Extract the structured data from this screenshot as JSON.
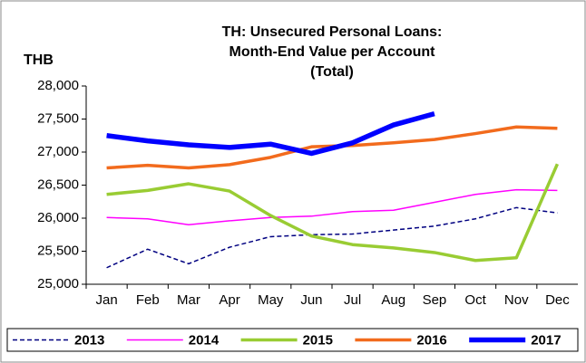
{
  "chart_data": {
    "type": "line",
    "title": [
      "TH: Unsecured Personal Loans:",
      "Month-End Value per Account",
      "(Total)"
    ],
    "y_label": "THB",
    "categories": [
      "Jan",
      "Feb",
      "Mar",
      "Apr",
      "May",
      "Jun",
      "Jul",
      "Aug",
      "Sep",
      "Oct",
      "Nov",
      "Dec"
    ],
    "series": [
      {
        "name": "2013",
        "color": "#000080",
        "width": 1.5,
        "dash": true,
        "values": [
          25250,
          25530,
          25310,
          25560,
          25720,
          25750,
          25760,
          25820,
          25880,
          25990,
          26160,
          26080
        ]
      },
      {
        "name": "2014",
        "color": "#ff00ff",
        "width": 1.5,
        "dash": false,
        "values": [
          26010,
          25990,
          25900,
          25960,
          26010,
          26030,
          26100,
          26120,
          26240,
          26360,
          26430,
          26420
        ]
      },
      {
        "name": "2015",
        "color": "#99cc33",
        "width": 3.5,
        "dash": false,
        "values": [
          26360,
          26420,
          26520,
          26410,
          26040,
          25730,
          25600,
          25550,
          25480,
          25360,
          25400,
          26820
        ]
      },
      {
        "name": "2016",
        "color": "#f26b1d",
        "width": 3.5,
        "dash": false,
        "values": [
          26760,
          26800,
          26760,
          26810,
          26920,
          27080,
          27100,
          27140,
          27190,
          27280,
          27380,
          27360
        ]
      },
      {
        "name": "2017",
        "color": "#0000ff",
        "width": 5.5,
        "dash": false,
        "values": [
          27250,
          27170,
          27110,
          27070,
          27120,
          26980,
          27140,
          27410,
          27580,
          null,
          null,
          null
        ]
      }
    ],
    "ylim": [
      25000,
      28000
    ],
    "yticks": [
      {
        "value": 25000,
        "label": "25,000"
      },
      {
        "value": 25500,
        "label": "25,500"
      },
      {
        "value": 26000,
        "label": "26,000"
      },
      {
        "value": 26500,
        "label": "26,500"
      },
      {
        "value": 27000,
        "label": "27,000"
      },
      {
        "value": 27500,
        "label": "27,500"
      },
      {
        "value": 28000,
        "label": "28,000"
      }
    ],
    "grid": false,
    "legend": "bottom"
  }
}
